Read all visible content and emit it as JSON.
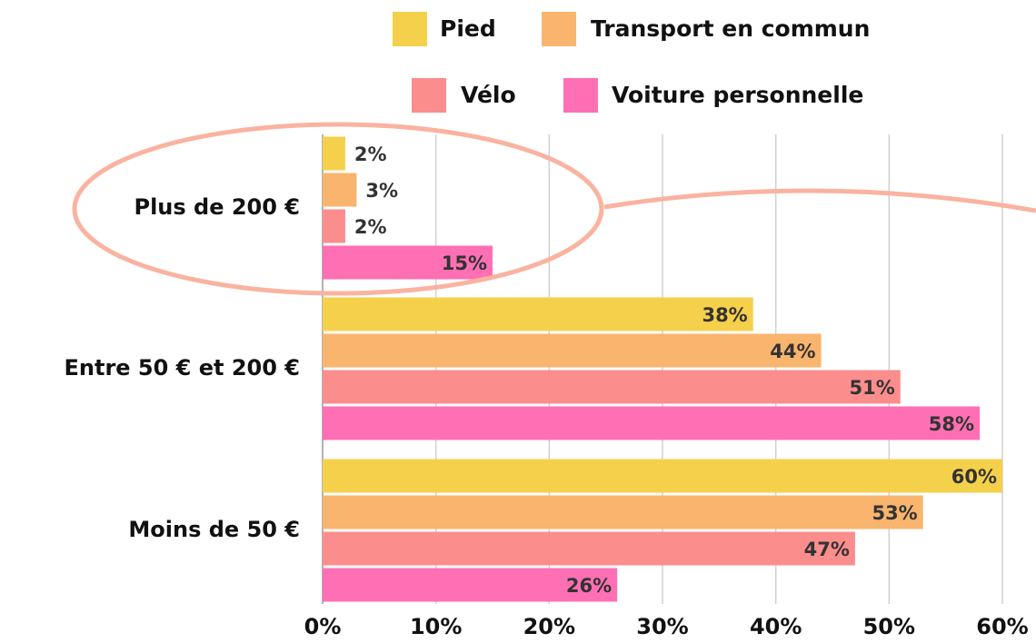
{
  "chart_data": {
    "type": "hbar",
    "categories": [
      "Plus de 200 €",
      "Entre 50 € et 200 €",
      "Moins de 50 €"
    ],
    "series": [
      {
        "name": "Pied",
        "color": "#f5d04b",
        "values": [
          2,
          38,
          60
        ],
        "value_labels": [
          "2%",
          "38%",
          "60%"
        ]
      },
      {
        "name": "Transport en commun",
        "color": "#f9b46e",
        "values": [
          3,
          44,
          53
        ],
        "value_labels": [
          "3%",
          "44%",
          "53%"
        ]
      },
      {
        "name": "Vélo",
        "color": "#fc8d8d",
        "values": [
          2,
          51,
          47
        ],
        "value_labels": [
          "2%",
          "51%",
          "47%"
        ]
      },
      {
        "name": "Voiture personnelle",
        "color": "#ff6fb4",
        "values": [
          15,
          58,
          26
        ],
        "value_labels": [
          "15%",
          "58%",
          "26%"
        ]
      }
    ],
    "xlim": [
      0,
      60
    ],
    "xticks": [
      {
        "value": 0,
        "label": "0%"
      },
      {
        "value": 10,
        "label": "10%"
      },
      {
        "value": 20,
        "label": "20%"
      },
      {
        "value": 30,
        "label": "30%"
      },
      {
        "value": 40,
        "label": "40%"
      },
      {
        "value": 50,
        "label": "50%"
      },
      {
        "value": 60,
        "label": "60%"
      }
    ],
    "grid": true
  }
}
